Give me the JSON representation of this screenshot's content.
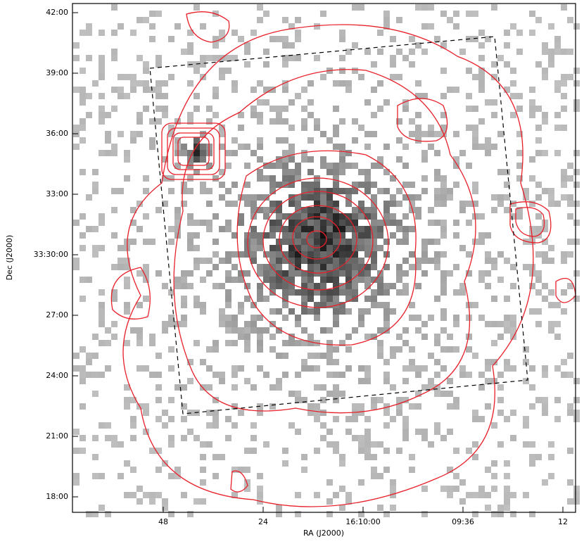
{
  "x_axis": {
    "label": "RA (J2000)",
    "ticks": [
      "48",
      "24",
      "16:10:00",
      "09:36",
      "12"
    ]
  },
  "y_axis": {
    "label": "Dec (J2000)",
    "ticks": [
      "42:00",
      "39:00",
      "36:00",
      "33:00",
      "33:30:00",
      "27:00",
      "24:00",
      "21:00",
      "18:00"
    ]
  }
}
